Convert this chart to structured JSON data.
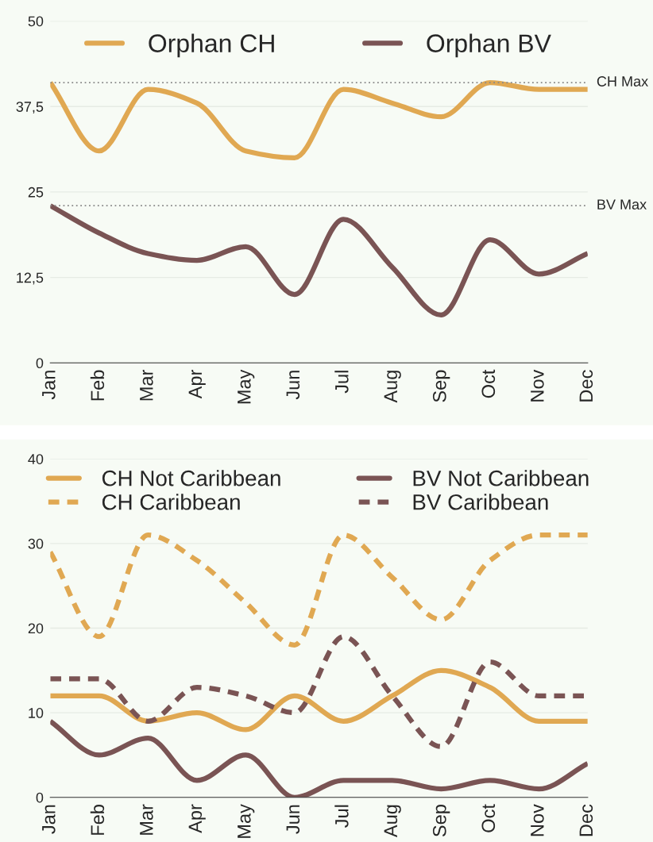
{
  "chart_data": [
    {
      "type": "line",
      "categories": [
        "Jan",
        "Feb",
        "Mar",
        "Apr",
        "May",
        "Jun",
        "Jul",
        "Aug",
        "Sep",
        "Oct",
        "Nov",
        "Dec"
      ],
      "series": [
        {
          "name": "Orphan CH",
          "color": "#e0a852",
          "values": [
            41,
            31,
            40,
            38,
            31,
            30,
            40,
            38,
            36,
            41,
            40,
            40
          ]
        },
        {
          "name": "Orphan BV",
          "color": "#7a5454",
          "values": [
            23,
            19,
            16,
            15,
            17,
            10,
            21,
            14,
            7,
            18,
            13,
            16
          ]
        }
      ],
      "ylim": [
        0,
        50
      ],
      "yticks": [
        0,
        {
          "value": 12.5,
          "label": "12,5"
        },
        25,
        {
          "value": 37.5,
          "label": "37,5"
        },
        50
      ],
      "grid": "y",
      "legend": "top",
      "marker": "none",
      "line_style": "solid",
      "ref_lines": [
        {
          "axis": "y",
          "value": 41,
          "label": "CH Max",
          "color": "#888888",
          "line_style": "dotted"
        },
        {
          "axis": "y",
          "value": 23,
          "label": "BV Max",
          "color": "#888888",
          "line_style": "dotted"
        }
      ]
    },
    {
      "type": "line",
      "categories": [
        "Jan",
        "Feb",
        "Mar",
        "Apr",
        "May",
        "Jun",
        "Jul",
        "Aug",
        "Sep",
        "Oct",
        "Nov",
        "Dec"
      ],
      "series": [
        {
          "name": "CH Not Caribbean",
          "color": "#e0a852",
          "values": [
            12,
            12,
            9,
            10,
            8,
            12,
            9,
            12,
            15,
            13,
            9,
            9
          ]
        },
        {
          "name": "CH Caribbean",
          "color": "#e0a852",
          "line_style": "dashed",
          "values": [
            29,
            19,
            31,
            28,
            23,
            18,
            31,
            26,
            21,
            28,
            31,
            31
          ]
        },
        {
          "name": "BV Not Caribbean",
          "color": "#7a5454",
          "values": [
            9,
            5,
            7,
            2,
            5,
            0,
            2,
            2,
            1,
            2,
            1,
            4
          ]
        },
        {
          "name": "BV Caribbean",
          "color": "#7a5454",
          "line_style": "dashed",
          "values": [
            14,
            14,
            9,
            13,
            12,
            10,
            19,
            12,
            6,
            16,
            12,
            12
          ]
        }
      ],
      "ylim": [
        0,
        40
      ],
      "yticks": [
        0,
        10,
        20,
        30,
        40
      ],
      "grid": "y",
      "legend": "top",
      "marker": "none",
      "line_style": "solid"
    }
  ]
}
